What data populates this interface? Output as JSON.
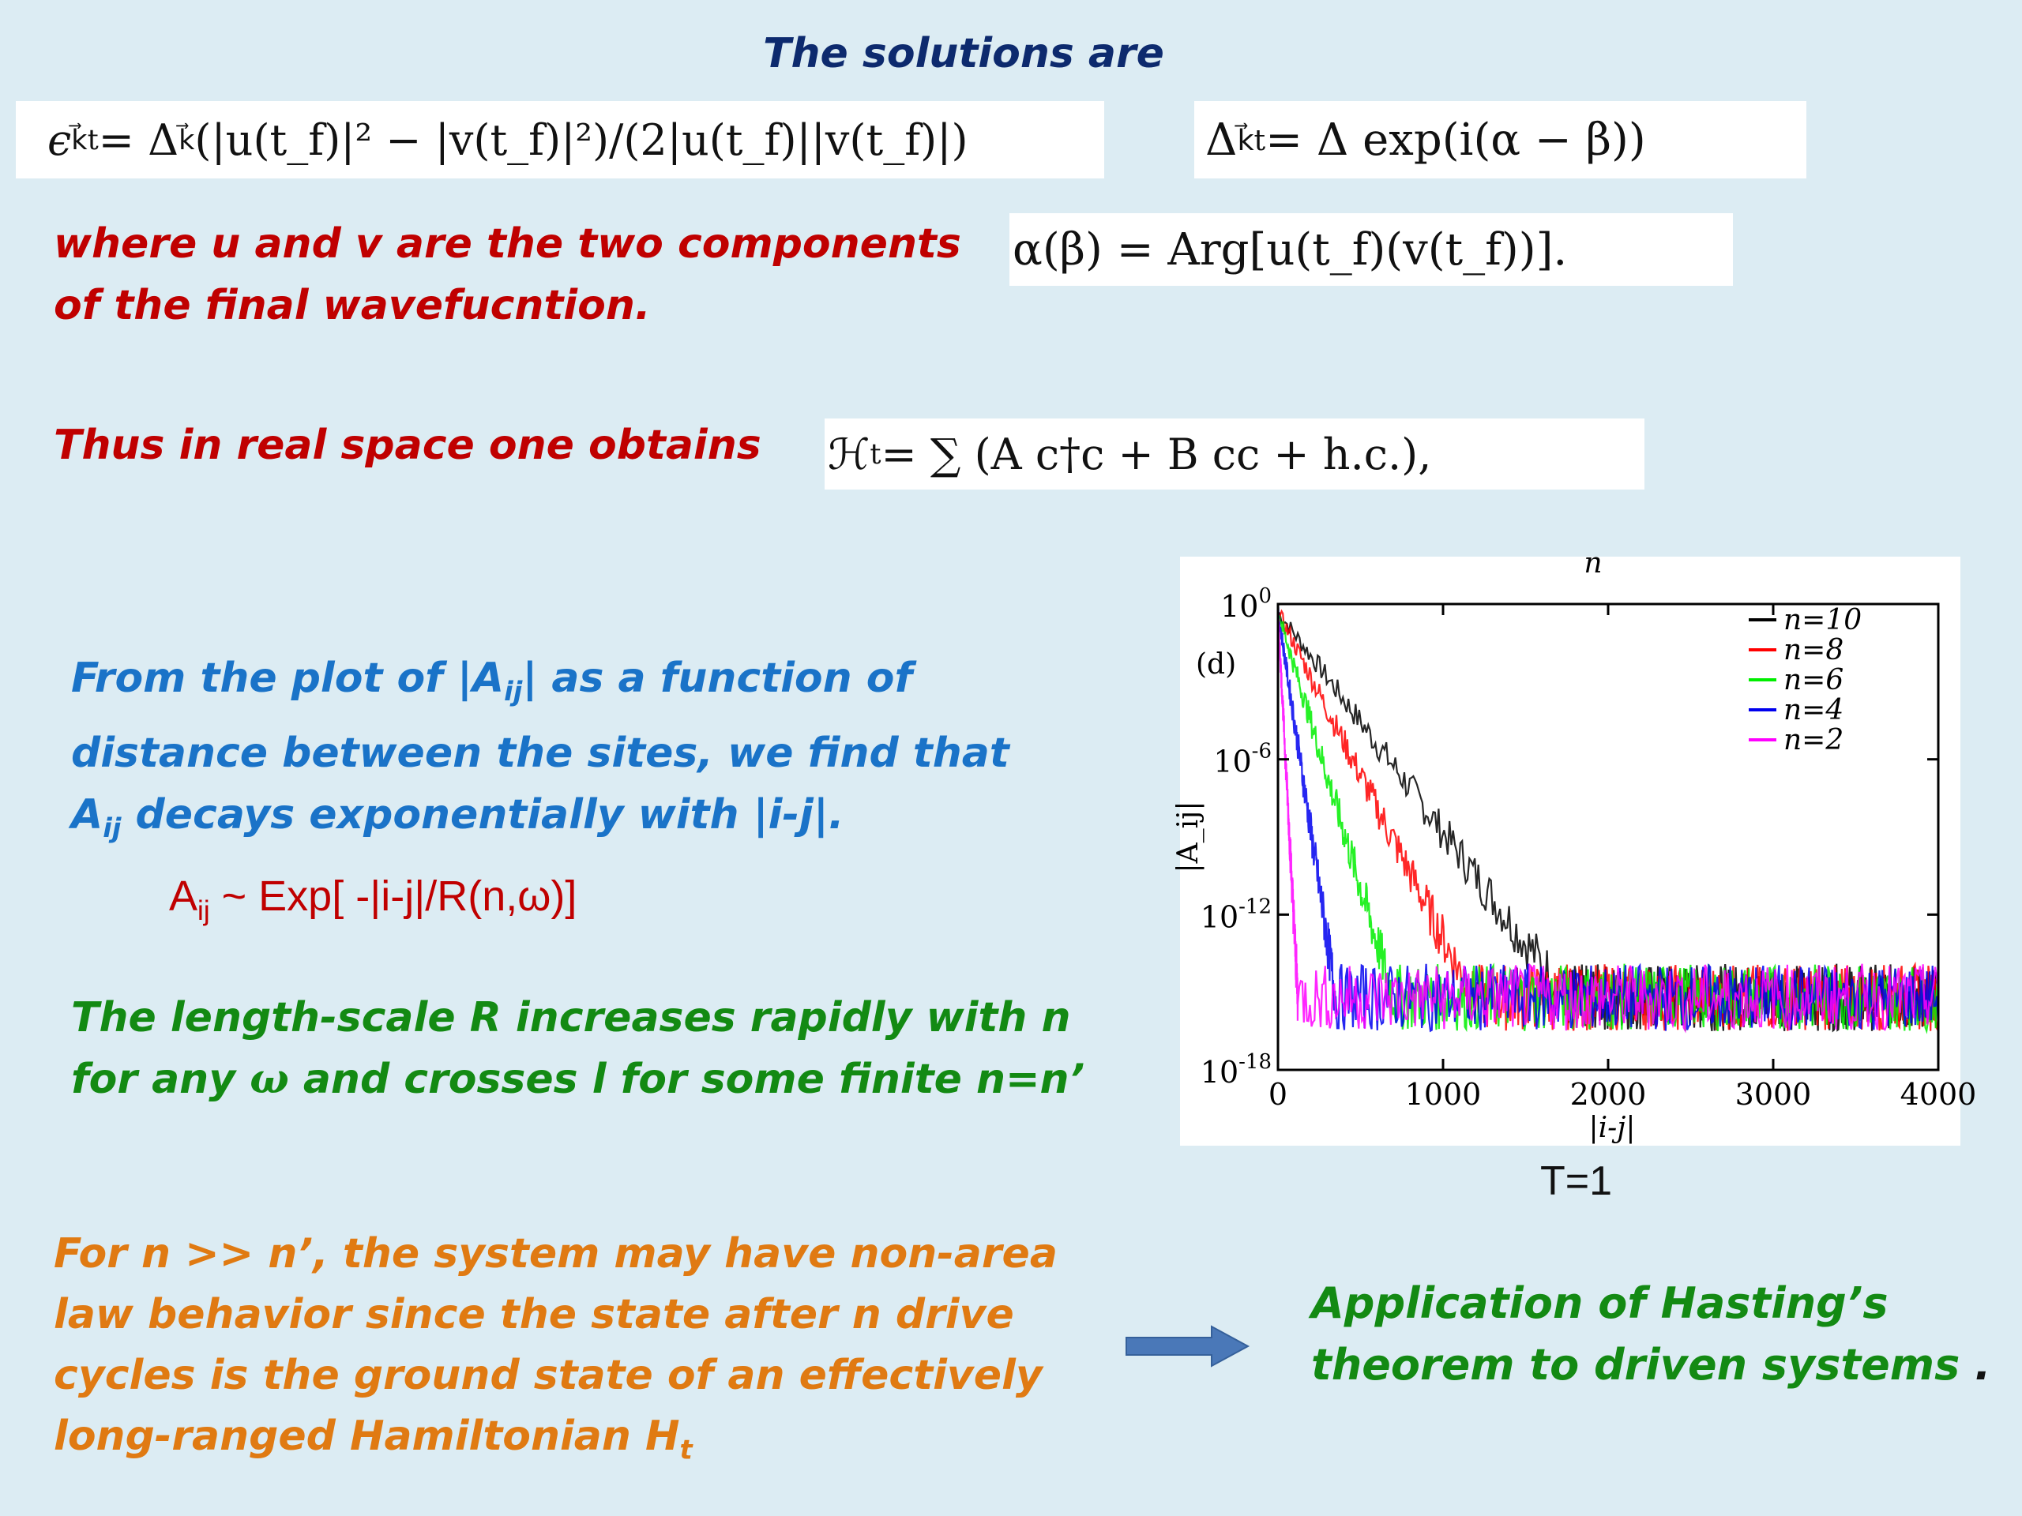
{
  "title": "The solutions are",
  "equations": {
    "eps": "ϵ",
    "k_vec_t": "k⃗t",
    "k_vec": "k⃗",
    "eq1_rest": " = Δ",
    "eq1_tail": "(|u(t_f)|² − |v(t_f)|²)/(2|u(t_f)||v(t_f)|)",
    "eq2_head": "Δ",
    "eq2_tail": " = Δ exp(i(α − β))",
    "eq3": "α(β)  =  Arg[u(t_f)(v(t_f))].",
    "eq4_head": "ℋ",
    "eq4_sub": "t",
    "eq4_tail": "  =  ∑ (A c†c + B cc + h.c.),"
  },
  "para_where": "where u and v are the two components of the final wavefucntion.",
  "para_thus": "Thus in real space one obtains",
  "para_plot_1": "From the plot of |A",
  "para_plot_sub1": "ij",
  "para_plot_2": "| as a function of distance between the sites, we find that A",
  "para_plot_sub2": "ij",
  "para_plot_3": " decays exponentially with |i-j|.",
  "formula_A": "A",
  "formula_sub": "ij",
  "formula_rest": "  ~ Exp[ -|i-j|/R(n,ω)]",
  "para_length_1": "The length-scale R increases rapidly with n for any ",
  "para_length_omega": "ω",
  "para_length_2": "  and crosses l for some finite n=n’",
  "para_orange_1": "For  n >> n’, the system may have non-area law behavior since the state after n drive cycles is the ground state of an effectively long-ranged Hamiltonian H",
  "para_orange_sub": "t",
  "para_application": "Application of Hasting’s theorem to driven systems",
  "para_application_dot": " .",
  "plot_caption": "T=1",
  "colors": {
    "n10": "#000000",
    "n8": "#ff0000",
    "n6": "#00ee00",
    "n4": "#0000ee",
    "n2": "#ff00ff",
    "arrow": "#4a78b8"
  },
  "chart_data": {
    "type": "line",
    "panel_label": "(d)",
    "top_label": "n",
    "xlabel": "|i-j|",
    "ylabel": "|A_ij|",
    "xlim": [
      0,
      4000
    ],
    "ylim_log10": [
      -18,
      0
    ],
    "xticks": [
      "0",
      "1000",
      "2000",
      "3000",
      "4000"
    ],
    "yticks": [
      {
        "base": "10",
        "exp": "0",
        "v": 0
      },
      {
        "base": "10",
        "exp": "-6",
        "v": -6
      },
      {
        "base": "10",
        "exp": "-12",
        "v": -12
      },
      {
        "base": "10",
        "exp": "-18",
        "v": -18
      }
    ],
    "noise_floor_log10": -15.2,
    "legend_position": "top-right",
    "series": [
      {
        "name": "n=10",
        "color": "#000000",
        "decay_end_x": 1750
      },
      {
        "name": "n=8",
        "color": "#ff0000",
        "decay_end_x": 1180
      },
      {
        "name": "n=6",
        "color": "#00ee00",
        "decay_end_x": 700
      },
      {
        "name": "n=4",
        "color": "#0000ee",
        "decay_end_x": 350
      },
      {
        "name": "n=2",
        "color": "#ff00ff",
        "decay_end_x": 120
      }
    ]
  }
}
